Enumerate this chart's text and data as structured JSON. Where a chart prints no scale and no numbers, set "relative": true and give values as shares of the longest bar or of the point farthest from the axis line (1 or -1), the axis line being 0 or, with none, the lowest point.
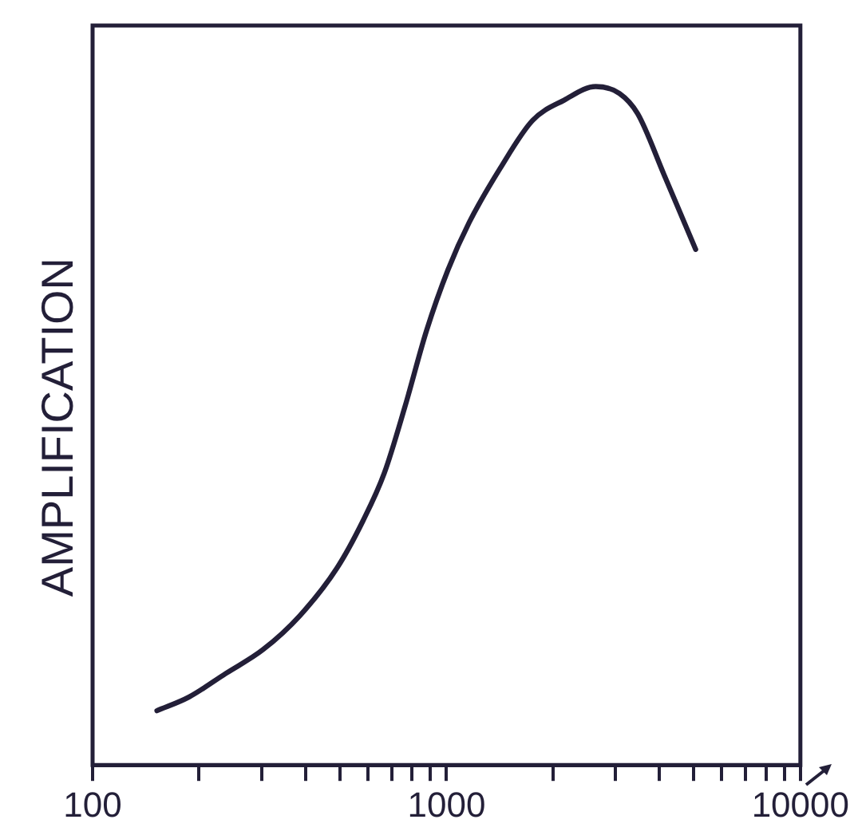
{
  "chart_data": {
    "type": "line",
    "ylabel": "AMPLIFICATION",
    "relative": true,
    "log": "x",
    "marker": "none",
    "line_style": "solid",
    "grid": false,
    "legend": false,
    "xlim": [
      100,
      10000
    ],
    "xticks": [
      100,
      {
        "value": 200,
        "label": null
      },
      {
        "value": 300,
        "label": null
      },
      {
        "value": 400,
        "label": null
      },
      {
        "value": 500,
        "label": null
      },
      {
        "value": 600,
        "label": null
      },
      {
        "value": 700,
        "label": null
      },
      {
        "value": 800,
        "label": null
      },
      {
        "value": 900,
        "label": null
      },
      1000,
      {
        "value": 2000,
        "label": null
      },
      {
        "value": 3000,
        "label": null
      },
      {
        "value": 4000,
        "label": null
      },
      {
        "value": 5000,
        "label": null
      },
      {
        "value": 6000,
        "label": null
      },
      {
        "value": 7000,
        "label": null
      },
      {
        "value": 8000,
        "label": null
      },
      {
        "value": 9000,
        "label": null
      },
      10000
    ],
    "series": [
      {
        "color": "#231f38",
        "x": [
          152,
          187,
          238,
          303,
          385,
          490,
          581,
          667,
          765,
          878,
          1010,
          1160,
          1420,
          1750,
          2150,
          2640,
          3080,
          3470,
          4120,
          5060
        ],
        "values": [
          0.08,
          0.1,
          0.135,
          0.17,
          0.22,
          0.29,
          0.36,
          0.43,
          0.53,
          0.64,
          0.73,
          0.8,
          0.88,
          0.95,
          0.98,
          1,
          0.99,
          0.96,
          0.87,
          0.76
        ]
      }
    ]
  }
}
